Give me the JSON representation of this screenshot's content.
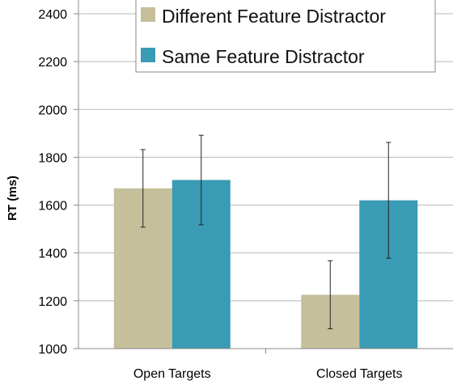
{
  "chart_data": {
    "type": "bar",
    "title": "",
    "xlabel": "",
    "ylabel": "RT (ms)",
    "ylim": [
      1000,
      2400
    ],
    "yticks": [
      1000,
      1200,
      1400,
      1600,
      1800,
      2000,
      2200,
      2400
    ],
    "grid": true,
    "legend_position": "top-center",
    "categories": [
      "Open Targets",
      "Closed Targets"
    ],
    "series": [
      {
        "name": "Different Feature Distractor",
        "color": "#c6bf9b",
        "values": [
          1670,
          1225
        ],
        "error": [
          162,
          142
        ]
      },
      {
        "name": "Same Feature Distractor",
        "color": "#3a9bb4",
        "values": [
          1705,
          1620
        ],
        "error": [
          187,
          242
        ]
      }
    ]
  }
}
